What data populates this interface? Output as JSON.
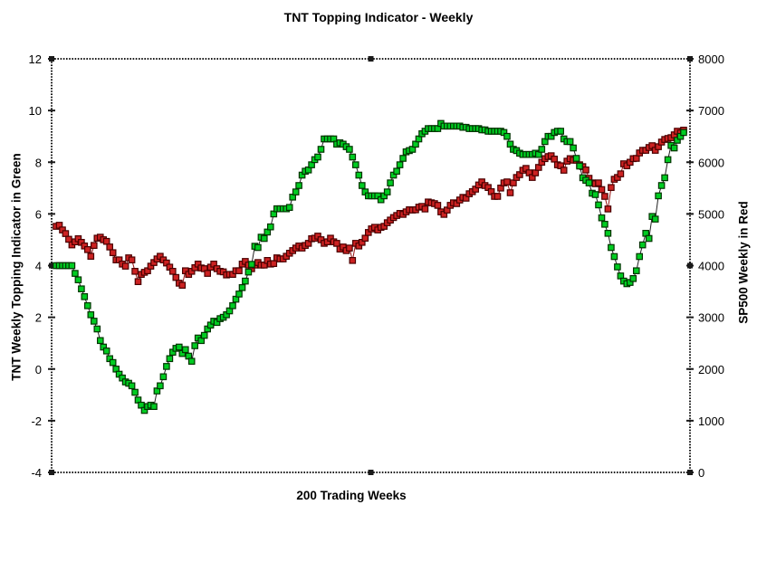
{
  "title": "TNT Topping Indicator - Weekly",
  "x_axis_label": "200 Trading Weeks",
  "left_axis_label": "TNT Weekly Topping Indicator in Green",
  "right_axis_label": "SP500 Weekly in Red",
  "colors": {
    "background": "#ffffff",
    "axis": "#1a1a1a",
    "green_series_fill": "#00cc22",
    "green_series_border": "#003300",
    "green_connector": "#222222",
    "red_series_fill": "#cc2222",
    "red_series_border": "#4a0000",
    "red_connector": "#991111",
    "text": "#000000"
  },
  "chart_data": {
    "type": "line",
    "title": "TNT Topping Indicator - Weekly",
    "xlabel": "200 Trading Weeks",
    "x_points": 200,
    "grid": false,
    "legend": "series identified by colored axis titles",
    "left_axis": {
      "label": "TNT Weekly Topping Indicator in Green",
      "min": -4,
      "max": 12,
      "tick_labels": [
        "12",
        "10",
        "8",
        "6",
        "4",
        "2",
        "0",
        "-2",
        "-4"
      ],
      "tick_values": [
        12,
        10,
        8,
        6,
        4,
        2,
        0,
        -2,
        -4
      ]
    },
    "right_axis": {
      "label": "SP500 Weekly in Red",
      "min": 0,
      "max": 8000,
      "tick_labels": [
        "8000",
        "7000",
        "6000",
        "5000",
        "4000",
        "3000",
        "2000",
        "1000",
        "0"
      ],
      "tick_values": [
        8000,
        7000,
        6000,
        5000,
        4000,
        3000,
        2000,
        1000,
        0
      ]
    },
    "series": [
      {
        "name": "TNT Weekly Topping Indicator",
        "axis": "left",
        "marker": "square",
        "values": [
          4.0,
          4.0,
          4.0,
          4.0,
          4.0,
          4.0,
          3.7,
          3.45,
          3.1,
          2.8,
          2.45,
          2.1,
          1.85,
          1.55,
          1.1,
          0.85,
          0.7,
          0.4,
          0.25,
          0.0,
          -0.2,
          -0.35,
          -0.5,
          -0.55,
          -0.65,
          -0.9,
          -1.2,
          -1.4,
          -1.6,
          -1.45,
          -1.4,
          -1.45,
          -0.85,
          -0.65,
          -0.3,
          0.1,
          0.4,
          0.65,
          0.8,
          0.85,
          0.6,
          0.75,
          0.5,
          0.3,
          0.9,
          1.2,
          1.1,
          1.3,
          1.55,
          1.7,
          1.85,
          1.8,
          1.95,
          2.0,
          2.1,
          2.25,
          2.45,
          2.7,
          2.9,
          3.15,
          3.4,
          3.75,
          4.05,
          4.75,
          4.7,
          5.1,
          5.05,
          5.3,
          5.5,
          6.0,
          6.2,
          6.2,
          6.2,
          6.2,
          6.25,
          6.65,
          6.85,
          7.1,
          7.5,
          7.65,
          7.7,
          7.9,
          8.1,
          8.2,
          8.5,
          8.9,
          8.9,
          8.9,
          8.9,
          8.7,
          8.75,
          8.7,
          8.6,
          8.5,
          8.2,
          7.9,
          7.5,
          7.1,
          6.85,
          6.7,
          6.7,
          6.7,
          6.7,
          6.55,
          6.7,
          6.85,
          7.2,
          7.5,
          7.65,
          7.9,
          8.15,
          8.4,
          8.45,
          8.5,
          8.7,
          8.9,
          9.1,
          9.2,
          9.3,
          9.3,
          9.3,
          9.3,
          9.5,
          9.4,
          9.4,
          9.4,
          9.4,
          9.4,
          9.4,
          9.35,
          9.35,
          9.3,
          9.3,
          9.3,
          9.3,
          9.25,
          9.25,
          9.2,
          9.2,
          9.2,
          9.2,
          9.2,
          9.15,
          9.0,
          8.7,
          8.5,
          8.45,
          8.35,
          8.3,
          8.3,
          8.3,
          8.3,
          8.35,
          8.3,
          8.5,
          8.8,
          9.0,
          9.0,
          9.15,
          9.2,
          9.2,
          8.9,
          8.8,
          8.8,
          8.55,
          8.15,
          7.85,
          7.4,
          7.3,
          7.2,
          6.8,
          6.75,
          6.35,
          5.85,
          5.6,
          5.25,
          4.7,
          4.35,
          3.95,
          3.6,
          3.4,
          3.3,
          3.35,
          3.5,
          3.8,
          4.35,
          4.8,
          5.25,
          5.05,
          5.9,
          5.8,
          6.7,
          7.1,
          7.4,
          8.1,
          8.65,
          8.55,
          8.85,
          9.0,
          9.15
        ]
      },
      {
        "name": "SP500 Weekly",
        "axis": "right",
        "marker": "square",
        "values": [
          4760,
          4780,
          4690,
          4620,
          4510,
          4400,
          4460,
          4520,
          4450,
          4380,
          4310,
          4180,
          4390,
          4530,
          4550,
          4500,
          4470,
          4360,
          4250,
          4110,
          4110,
          4030,
          3990,
          4150,
          4110,
          3890,
          3690,
          3830,
          3870,
          3900,
          3990,
          4060,
          4130,
          4180,
          4110,
          4050,
          3970,
          3890,
          3770,
          3660,
          3620,
          3900,
          3830,
          3890,
          3960,
          4030,
          3955,
          3940,
          3850,
          3970,
          4030,
          3940,
          3890,
          3880,
          3820,
          3830,
          3830,
          3900,
          3900,
          4030,
          4080,
          4010,
          3940,
          4010,
          4060,
          4010,
          4010,
          4100,
          4030,
          4040,
          4150,
          4130,
          4130,
          4180,
          4240,
          4290,
          4340,
          4380,
          4340,
          4390,
          4430,
          4520,
          4530,
          4570,
          4500,
          4430,
          4460,
          4530,
          4460,
          4430,
          4320,
          4360,
          4290,
          4340,
          4100,
          4430,
          4380,
          4450,
          4530,
          4640,
          4710,
          4740,
          4690,
          4740,
          4760,
          4830,
          4880,
          4930,
          4970,
          5010,
          4990,
          5040,
          5080,
          5075,
          5080,
          5130,
          5145,
          5095,
          5230,
          5215,
          5200,
          5165,
          5040,
          4990,
          5075,
          5165,
          5215,
          5200,
          5270,
          5320,
          5305,
          5390,
          5430,
          5480,
          5560,
          5620,
          5550,
          5510,
          5430,
          5340,
          5340,
          5500,
          5600,
          5620,
          5410,
          5600,
          5705,
          5760,
          5845,
          5880,
          5795,
          5705,
          5795,
          5900,
          6000,
          6070,
          6110,
          6125,
          6060,
          5950,
          5930,
          5845,
          6020,
          6070,
          6040,
          6040,
          5950,
          5915,
          5850,
          5690,
          5600,
          5585,
          5600,
          5470,
          5340,
          5095,
          5510,
          5670,
          5705,
          5775,
          5970,
          5930,
          6000,
          6070,
          6075,
          6180,
          6230,
          6230,
          6285,
          6320,
          6230,
          6300,
          6390,
          6440,
          6460,
          6475,
          6530,
          6600,
          6565,
          6620
        ]
      }
    ]
  }
}
